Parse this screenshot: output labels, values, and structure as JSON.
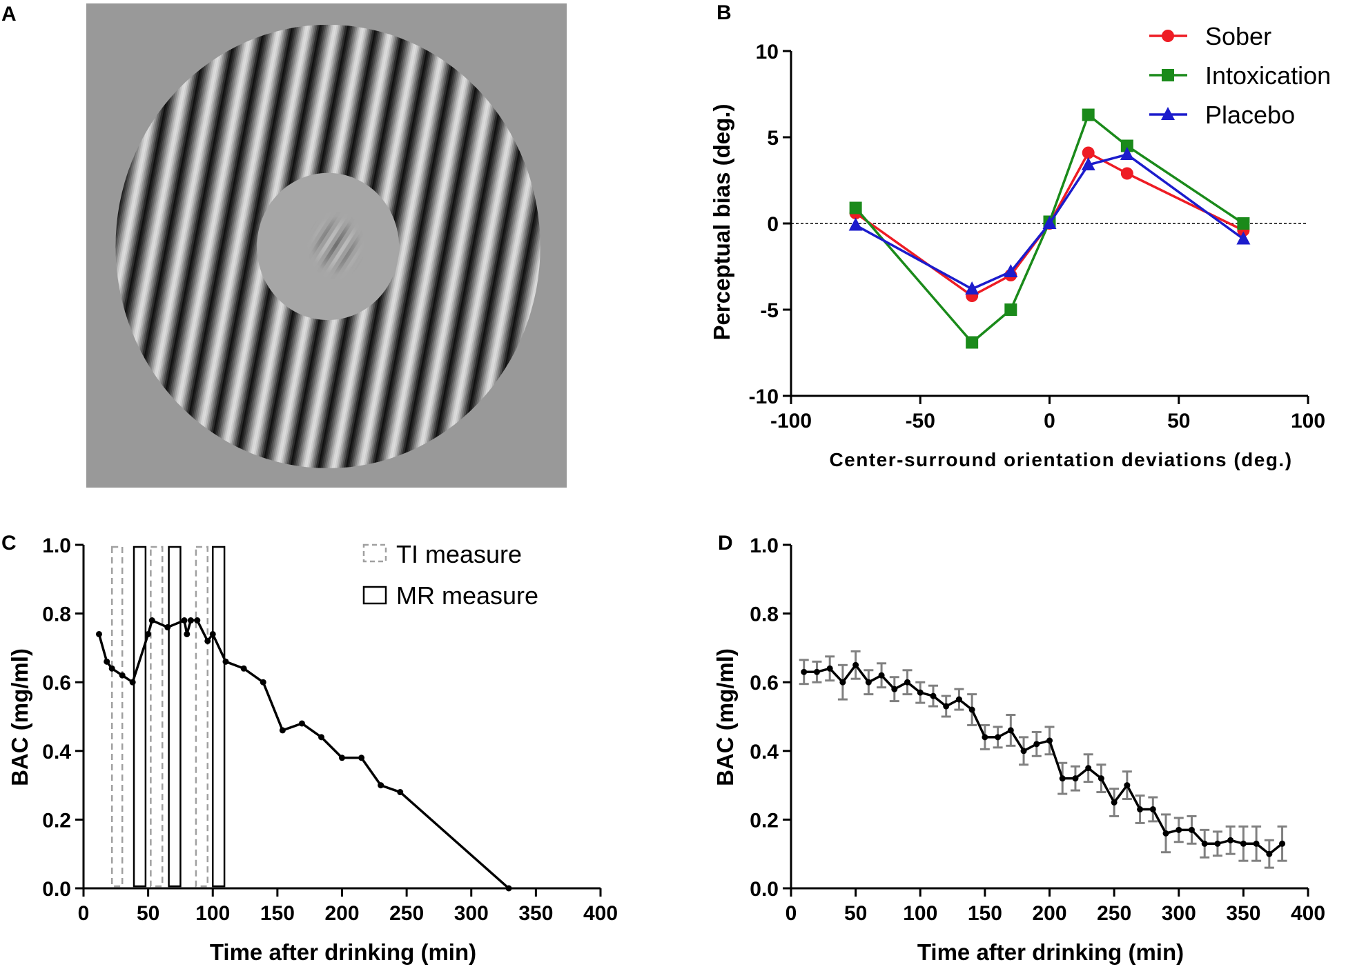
{
  "colors": {
    "sober": "#ee1c24",
    "intoxication": "#1a8a1a",
    "placebo": "#1c1ccc",
    "bac_line": "#000000",
    "error_bar": "#808080",
    "ti_box": "#a0a0a0",
    "mr_box": "#000000",
    "stimulus_bg": "#999999"
  },
  "panels": {
    "a": {
      "letter": "A"
    },
    "b": {
      "letter": "B"
    },
    "c": {
      "letter": "C"
    },
    "d": {
      "letter": "D"
    }
  },
  "chart_data": [
    {
      "panel": "A",
      "type": "image",
      "description_icon": "center-surround-grating-stimulus"
    },
    {
      "panel": "B",
      "type": "line",
      "title": "",
      "xlabel": "Center-surround orientation deviations (deg.)",
      "ylabel": "Perceptual bias (deg.)",
      "xlim": [
        -100,
        100
      ],
      "ylim": [
        -10,
        10
      ],
      "xticks": [
        -100,
        -50,
        0,
        50,
        100
      ],
      "yticks": [
        -10,
        -5,
        0,
        5,
        10
      ],
      "xtick_labels": [
        "-100",
        "-50",
        "0",
        "50",
        "100"
      ],
      "ytick_labels": [
        "-10",
        "-5",
        "0",
        "5",
        "10"
      ],
      "x": [
        -75,
        -30,
        -15,
        0,
        15,
        30,
        75
      ],
      "series": [
        {
          "name": "Sober",
          "marker": "circle",
          "color_key": "sober",
          "values": [
            0.6,
            -4.2,
            -3.0,
            0.0,
            4.1,
            2.9,
            -0.4
          ]
        },
        {
          "name": "Intoxication",
          "marker": "square",
          "color_key": "intoxication",
          "values": [
            0.9,
            -6.9,
            -5.0,
            0.1,
            6.3,
            4.5,
            0.0
          ]
        },
        {
          "name": "Placebo",
          "marker": "triangle",
          "color_key": "placebo",
          "values": [
            -0.1,
            -3.8,
            -2.8,
            0.0,
            3.4,
            4.0,
            -0.9
          ]
        }
      ],
      "legend": "top-right",
      "reference_line_y": 0
    },
    {
      "panel": "C",
      "type": "line",
      "xlabel": "Time after drinking (min)",
      "ylabel": "BAC (mg/ml)",
      "xlim": [
        0,
        400
      ],
      "ylim": [
        0,
        1
      ],
      "xticks": [
        0,
        50,
        100,
        150,
        200,
        250,
        300,
        350,
        400
      ],
      "yticks": [
        0,
        0.2,
        0.4,
        0.6,
        0.8,
        1.0
      ],
      "xtick_labels": [
        "0",
        "50",
        "100",
        "150",
        "200",
        "250",
        "300",
        "350",
        "400"
      ],
      "ytick_labels": [
        "0.0",
        "0.2",
        "0.4",
        "0.6",
        "0.8",
        "1.0"
      ],
      "x": [
        12,
        18,
        22,
        30,
        38,
        50,
        53,
        65,
        78,
        80,
        83,
        88,
        96,
        100,
        110,
        124,
        139,
        154,
        169,
        184,
        200,
        215,
        230,
        245,
        329
      ],
      "y": [
        0.74,
        0.66,
        0.64,
        0.62,
        0.6,
        0.74,
        0.78,
        0.76,
        0.78,
        0.74,
        0.78,
        0.78,
        0.72,
        0.74,
        0.66,
        0.64,
        0.6,
        0.46,
        0.48,
        0.44,
        0.38,
        0.38,
        0.3,
        0.28,
        0.0
      ],
      "ti_measure_intervals": [
        [
          22,
          30
        ],
        [
          52,
          61
        ],
        [
          87,
          96
        ]
      ],
      "mr_measure_intervals": [
        [
          39,
          48
        ],
        [
          66,
          75
        ],
        [
          100,
          109
        ]
      ],
      "legend_entries": [
        "TI measure",
        "MR measure"
      ],
      "legend": "top-right"
    },
    {
      "panel": "D",
      "type": "line",
      "xlabel": "Time after drinking (min)",
      "ylabel": "BAC (mg/ml)",
      "xlim": [
        0,
        400
      ],
      "ylim": [
        0,
        1
      ],
      "xticks": [
        0,
        50,
        100,
        150,
        200,
        250,
        300,
        350,
        400
      ],
      "yticks": [
        0,
        0.2,
        0.4,
        0.6,
        0.8,
        1.0
      ],
      "xtick_labels": [
        "0",
        "50",
        "100",
        "150",
        "200",
        "250",
        "300",
        "350",
        "400"
      ],
      "ytick_labels": [
        "0.0",
        "0.2",
        "0.4",
        "0.6",
        "0.8",
        "1.0"
      ],
      "x": [
        10,
        20,
        30,
        40,
        50,
        60,
        70,
        80,
        90,
        100,
        110,
        120,
        130,
        140,
        150,
        160,
        170,
        180,
        190,
        200,
        210,
        220,
        230,
        240,
        250,
        260,
        270,
        280,
        290,
        300,
        310,
        320,
        330,
        340,
        350,
        360,
        370,
        380
      ],
      "y": [
        0.63,
        0.63,
        0.64,
        0.6,
        0.65,
        0.6,
        0.62,
        0.58,
        0.6,
        0.57,
        0.56,
        0.53,
        0.55,
        0.52,
        0.44,
        0.44,
        0.46,
        0.4,
        0.42,
        0.43,
        0.32,
        0.32,
        0.35,
        0.32,
        0.25,
        0.3,
        0.23,
        0.23,
        0.16,
        0.17,
        0.17,
        0.13,
        0.13,
        0.14,
        0.13,
        0.13,
        0.1,
        0.13
      ],
      "error": [
        0.035,
        0.03,
        0.035,
        0.05,
        0.04,
        0.035,
        0.035,
        0.035,
        0.035,
        0.03,
        0.03,
        0.03,
        0.03,
        0.045,
        0.035,
        0.03,
        0.045,
        0.04,
        0.035,
        0.04,
        0.045,
        0.035,
        0.04,
        0.04,
        0.04,
        0.04,
        0.04,
        0.035,
        0.055,
        0.035,
        0.04,
        0.04,
        0.035,
        0.04,
        0.05,
        0.05,
        0.04,
        0.05
      ]
    }
  ]
}
